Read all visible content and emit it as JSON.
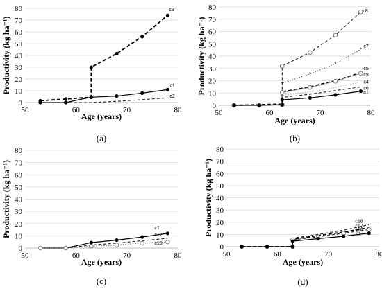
{
  "chart_data": [
    {
      "panel": "(a)",
      "type": "line",
      "xlabel": "Age (years)",
      "ylabel": "Productivity (kg ha⁻¹)",
      "xlim": [
        50,
        80
      ],
      "ylim": [
        0,
        80
      ],
      "xticks": [
        50,
        60,
        70,
        80
      ],
      "yticks": [
        0,
        10,
        20,
        30,
        40,
        50,
        60,
        70,
        80
      ],
      "grid": "horizontal",
      "series": [
        {
          "name": "c3",
          "style": "bold-dashed",
          "marker": "filled-circle",
          "points": [
            [
              53,
              1.5
            ],
            [
              58,
              3
            ],
            [
              63,
              4.5
            ],
            [
              63,
              30
            ],
            [
              68,
              41.5
            ],
            [
              73,
              56
            ],
            [
              78,
              74
            ]
          ]
        },
        {
          "name": "c1",
          "style": "solid",
          "marker": "filled-circle",
          "points": [
            [
              53,
              0
            ],
            [
              58,
              0
            ],
            [
              63,
              4.5
            ],
            [
              68,
              5.5
            ],
            [
              73,
              8
            ],
            [
              78,
              11
            ]
          ]
        },
        {
          "name": "c2",
          "style": "dashed",
          "marker": "none",
          "points": [
            [
              53,
              0
            ],
            [
              58,
              0
            ],
            [
              63,
              0
            ],
            [
              68,
              1
            ],
            [
              73,
              2.5
            ],
            [
              78,
              4
            ]
          ]
        }
      ]
    },
    {
      "panel": "(b)",
      "type": "line",
      "xlabel": "Age (years)",
      "ylabel": "Productivity (kg ha⁻¹)",
      "xlim": [
        50,
        80
      ],
      "ylim": [
        0,
        80
      ],
      "xticks": [
        50,
        60,
        70,
        80
      ],
      "yticks": [
        0,
        10,
        20,
        30,
        40,
        50,
        60,
        70,
        80
      ],
      "grid": "horizontal",
      "series": [
        {
          "name": "c8",
          "style": "dashed",
          "marker": "open-circle",
          "points": [
            [
              53,
              0
            ],
            [
              58,
              0
            ],
            [
              62.5,
              0.5
            ],
            [
              62.5,
              32
            ],
            [
              68,
              43
            ],
            [
              73,
              57
            ],
            [
              78,
              76
            ]
          ]
        },
        {
          "name": "c7",
          "style": "dotted",
          "marker": "small-star",
          "points": [
            [
              53,
              0
            ],
            [
              58,
              0
            ],
            [
              62.5,
              0.5
            ],
            [
              62.5,
              18
            ],
            [
              68,
              25.5
            ],
            [
              73,
              34
            ],
            [
              78,
              45.5
            ]
          ]
        },
        {
          "name": "c5",
          "style": "bold-dashed",
          "marker": "filled-circle",
          "points": [
            [
              53,
              0
            ],
            [
              58,
              0.5
            ],
            [
              62.5,
              1
            ],
            [
              62.5,
              11
            ],
            [
              68,
              15
            ],
            [
              73,
              20
            ],
            [
              78,
              26.5
            ]
          ]
        },
        {
          "name": "c9",
          "style": "light-solid",
          "marker": "open-circle",
          "points": [
            [
              53,
              0
            ],
            [
              58,
              0
            ],
            [
              62.5,
              0.5
            ],
            [
              62.5,
              10.5
            ],
            [
              68,
              14.5
            ],
            [
              73,
              19.5
            ],
            [
              78,
              26
            ]
          ]
        },
        {
          "name": "c4",
          "style": "light-dotted",
          "marker": "none",
          "points": [
            [
              53,
              0
            ],
            [
              58,
              0
            ],
            [
              62.5,
              0.5
            ],
            [
              62.5,
              8
            ],
            [
              68,
              11
            ],
            [
              73,
              14.5
            ],
            [
              78,
              19
            ]
          ]
        },
        {
          "name": "c6",
          "style": "dashed",
          "marker": "none",
          "points": [
            [
              53,
              0
            ],
            [
              58,
              0
            ],
            [
              62.5,
              0.5
            ],
            [
              62.5,
              6.5
            ],
            [
              68,
              9
            ],
            [
              73,
              12
            ],
            [
              78,
              15
            ]
          ]
        },
        {
          "name": "c1",
          "style": "solid",
          "marker": "filled-circle",
          "points": [
            [
              53,
              0
            ],
            [
              58,
              0
            ],
            [
              62.5,
              0.5
            ],
            [
              62.5,
              4.5
            ],
            [
              68,
              6
            ],
            [
              73,
              8.5
            ],
            [
              78,
              11.5
            ]
          ]
        }
      ]
    },
    {
      "panel": "(c)",
      "type": "line",
      "xlabel": "Age (years)",
      "ylabel": "Productivity (kg ha⁻¹)",
      "xlim": [
        50,
        80
      ],
      "ylim": [
        0,
        80
      ],
      "xticks": [
        50,
        60,
        70,
        80
      ],
      "yticks": [
        0,
        10,
        20,
        30,
        40,
        50,
        60,
        70,
        80
      ],
      "grid": "horizontal",
      "series": [
        {
          "name": "c1",
          "style": "solid",
          "marker": "filled-circle",
          "points": [
            [
              53,
              0
            ],
            [
              58,
              0
            ],
            [
              63,
              4.5
            ],
            [
              68,
              6.5
            ],
            [
              73,
              9
            ],
            [
              78,
              12
            ]
          ]
        },
        {
          "name": "c12",
          "style": "dashed",
          "marker": "none",
          "points": [
            [
              53,
              0
            ],
            [
              58,
              0
            ],
            [
              63,
              2.5
            ],
            [
              68,
              4
            ],
            [
              73,
              6
            ],
            [
              78,
              8
            ]
          ]
        },
        {
          "name": "c15",
          "style": "dotted",
          "marker": "open-circle",
          "points": [
            [
              53,
              0
            ],
            [
              58,
              0
            ],
            [
              63,
              1.5
            ],
            [
              68,
              2.5
            ],
            [
              73,
              4
            ],
            [
              78,
              5
            ]
          ]
        }
      ]
    },
    {
      "panel": "(d)",
      "type": "line",
      "xlabel": "Age (years)",
      "ylabel": "Productivity (kg ha⁻¹)",
      "xlim": [
        50,
        80
      ],
      "ylim": [
        0,
        80
      ],
      "xticks": [
        50,
        60,
        70,
        80
      ],
      "yticks": [
        0,
        10,
        20,
        30,
        40,
        50,
        60,
        70,
        80
      ],
      "grid": "horizontal",
      "series": [
        {
          "name": "c18",
          "style": "dashed",
          "marker": "none",
          "points": [
            [
              53,
              0
            ],
            [
              58,
              0
            ],
            [
              63,
              0
            ],
            [
              63,
              7
            ],
            [
              68,
              10
            ],
            [
              73,
              13.5
            ],
            [
              78,
              18
            ]
          ]
        },
        {
          "name": "c17",
          "style": "bold-dashed",
          "marker": "none",
          "points": [
            [
              53,
              0
            ],
            [
              58,
              0
            ],
            [
              63,
              0
            ],
            [
              63,
              6
            ],
            [
              68,
              9
            ],
            [
              73,
              12
            ],
            [
              78,
              15.5
            ]
          ]
        },
        {
          "name": "c16",
          "style": "dashed",
          "marker": "open-circle",
          "points": [
            [
              53,
              0
            ],
            [
              58,
              0
            ],
            [
              63,
              0
            ],
            [
              63,
              5.5
            ],
            [
              68,
              8
            ],
            [
              73,
              11
            ],
            [
              78,
              14
            ]
          ]
        },
        {
          "name": "c1",
          "style": "solid",
          "marker": "filled-circle",
          "points": [
            [
              53,
              0
            ],
            [
              58,
              0
            ],
            [
              63,
              0
            ],
            [
              63,
              4.5
            ],
            [
              68,
              6.5
            ],
            [
              73,
              8.5
            ],
            [
              78,
              11
            ]
          ]
        }
      ]
    }
  ]
}
